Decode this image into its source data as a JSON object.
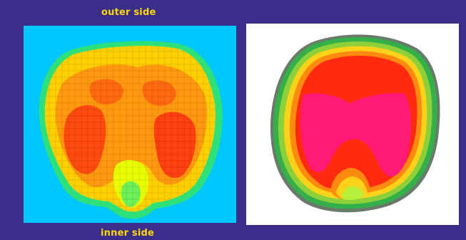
{
  "labels": {
    "top": "outer side",
    "bottom": "inner side"
  },
  "colors": {
    "background": "#3a2e8a",
    "label": "#ffd800",
    "heatmap_background": "#00c8ff",
    "contour_background": "#ffffff"
  }
}
